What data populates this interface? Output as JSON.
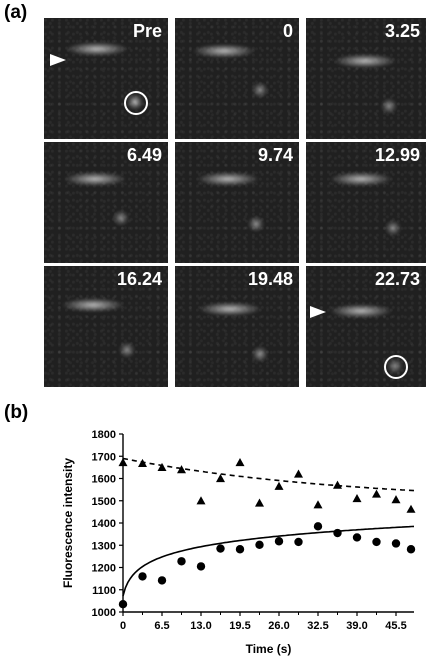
{
  "panel_a": {
    "label": "(a)",
    "frames": [
      {
        "time": "Pre"
      },
      {
        "time": "0"
      },
      {
        "time": "3.25"
      },
      {
        "time": "6.49"
      },
      {
        "time": "9.74"
      },
      {
        "time": "12.99"
      },
      {
        "time": "16.24"
      },
      {
        "time": "19.48"
      },
      {
        "time": "22.73"
      }
    ]
  },
  "panel_b": {
    "label": "(b)"
  },
  "chart_data": {
    "type": "scatter",
    "xlabel": "Time (s)",
    "ylabel": "Fluorescence intensity",
    "xlim": [
      0,
      48.5
    ],
    "ylim": [
      1000,
      1800
    ],
    "x_ticks": [
      "0",
      "6.5",
      "13.0",
      "19.5",
      "26.0",
      "32.5",
      "39.0",
      "45.5"
    ],
    "y_ticks": [
      "1000",
      "1100",
      "1200",
      "1300",
      "1400",
      "1500",
      "1600",
      "1700",
      "1800"
    ],
    "series": [
      {
        "marker": "triangle",
        "x": [
          0,
          3.25,
          6.5,
          9.75,
          13.0,
          16.25,
          19.5,
          22.75,
          26.0,
          29.25,
          32.5,
          35.75,
          39.0,
          42.25,
          45.5,
          48.0
        ],
        "y": [
          1672,
          1668,
          1650,
          1640,
          1500,
          1600,
          1672,
          1490,
          1565,
          1620,
          1482,
          1570,
          1510,
          1530,
          1505,
          1462
        ]
      },
      {
        "marker": "circle",
        "x": [
          0,
          3.25,
          6.5,
          9.75,
          13.0,
          16.25,
          19.5,
          22.75,
          26.0,
          29.25,
          32.5,
          35.75,
          39.0,
          42.25,
          45.5,
          48.0
        ],
        "y": [
          1035,
          1160,
          1142,
          1228,
          1205,
          1285,
          1282,
          1302,
          1318,
          1315,
          1385,
          1355,
          1335,
          1315,
          1308,
          1282
        ]
      }
    ],
    "fits": [
      {
        "style": "dashed",
        "model": "exp_decay",
        "y0": 1690,
        "plateau": 1490,
        "tau": 38
      },
      {
        "style": "solid",
        "model": "log_rise",
        "a": 1072,
        "b": 71,
        "c": 0.6
      }
    ],
    "grid": false
  }
}
